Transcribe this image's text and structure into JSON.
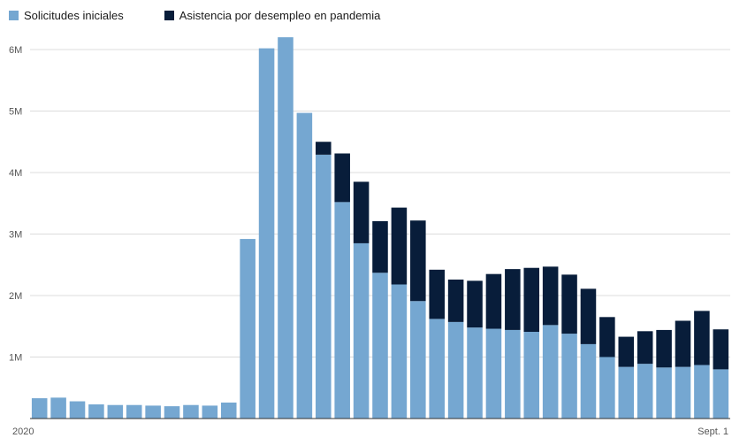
{
  "colors": {
    "initial": "#75a7d1",
    "pandemic": "#081d3a",
    "grid": "#dcdcdc",
    "axis": "#333333"
  },
  "legend": {
    "initial_label": "Solicitudes iniciales",
    "pandemic_label": "Asistencia por desempleo en pandemia"
  },
  "chart_data": {
    "type": "bar",
    "stacked": true,
    "legend_position": "top-left",
    "grid": true,
    "ylim": [
      0,
      6250000
    ],
    "yticks": [
      1000000,
      2000000,
      3000000,
      4000000,
      5000000,
      6000000
    ],
    "ytick_labels": [
      "1M",
      "2M",
      "3M",
      "4M",
      "5M",
      "6M"
    ],
    "x_start_label": "2020",
    "x_end_label": "Sept. 1",
    "series": [
      {
        "name": "Solicitudes iniciales",
        "values": [
          330000,
          340000,
          280000,
          230000,
          220000,
          220000,
          210000,
          200000,
          220000,
          210000,
          260000,
          2920000,
          6020000,
          6200000,
          4970000,
          4290000,
          3520000,
          2850000,
          2370000,
          2180000,
          1910000,
          1620000,
          1570000,
          1480000,
          1460000,
          1440000,
          1410000,
          1520000,
          1380000,
          1210000,
          1000000,
          840000,
          890000,
          830000,
          840000,
          870000,
          800000
        ]
      },
      {
        "name": "Asistencia por desempleo en pandemia",
        "values": [
          0,
          0,
          0,
          0,
          0,
          0,
          0,
          0,
          0,
          0,
          0,
          0,
          0,
          0,
          0,
          210000,
          790000,
          1000000,
          840000,
          1250000,
          1310000,
          800000,
          690000,
          760000,
          890000,
          990000,
          1040000,
          950000,
          960000,
          900000,
          650000,
          490000,
          530000,
          610000,
          750000,
          880000,
          650000
        ]
      }
    ]
  }
}
